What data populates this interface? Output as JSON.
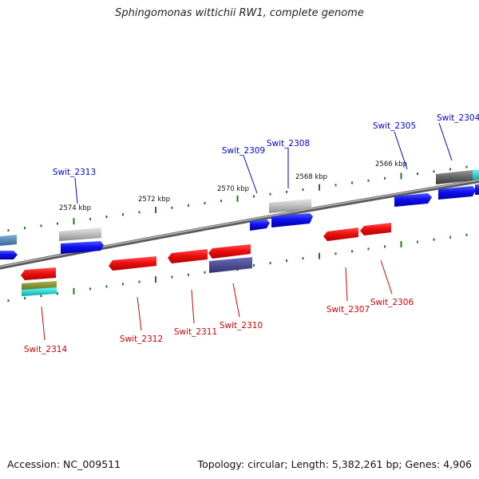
{
  "title": "Sphingomonas wittichii RW1, complete genome",
  "footer": {
    "accession": "Accession: NC_009511",
    "topology": "Topology: circular; Length: 5,382,261 bp; Genes: 4,906"
  },
  "colors": {
    "forward_label": "#0000cc",
    "reverse_label": "#cc0000",
    "backbone": "#7a7a7a",
    "tick": "#1a7a1a"
  },
  "scale_labels": [
    "2566 kbp",
    "2568 kbp",
    "2570 kbp",
    "2572 kbp",
    "2574 kbp"
  ],
  "forward_gene_labels": [
    "Swit_2304",
    "Swit_2305",
    "Swit_2308",
    "Swit_2309",
    "Swit_2313"
  ],
  "reverse_gene_labels": [
    "Swit_2306",
    "Swit_2307",
    "Swit_2310",
    "Swit_2311",
    "Swit_2312",
    "Swit_2314"
  ]
}
